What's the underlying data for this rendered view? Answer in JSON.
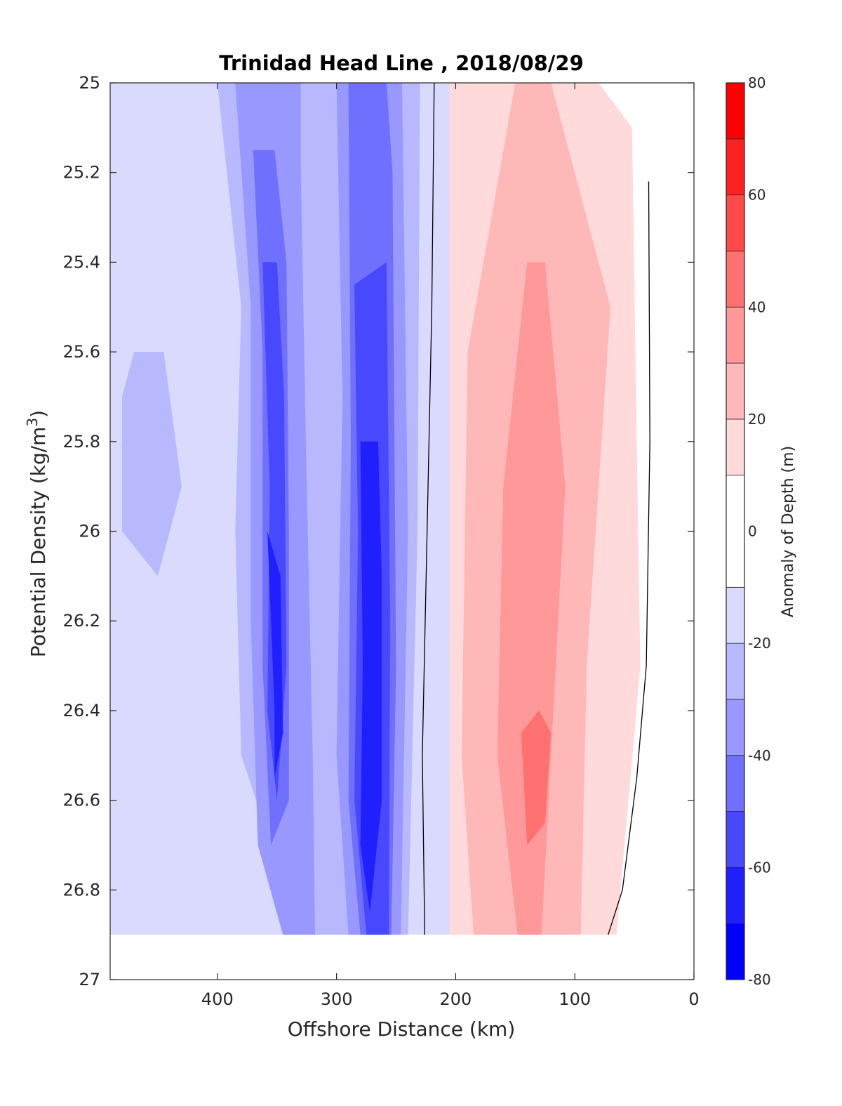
{
  "chart_data": {
    "type": "heatmap",
    "subtype": "filled-contour",
    "title": "Trinidad Head Line , 2018/08/29",
    "xlabel": "Offshore Distance (km)",
    "ylabel_main": "Potential Density (kg/m",
    "ylabel_sup": "3",
    "ylabel_end": ")",
    "xlim": [
      490,
      0
    ],
    "x_direction": "reversed",
    "ylim": [
      25,
      27
    ],
    "y_direction": "reversed (down)",
    "x_ticks": [
      400,
      300,
      200,
      100,
      0
    ],
    "y_ticks": [
      "25",
      "25.2",
      "25.4",
      "25.6",
      "25.8",
      "26",
      "26.2",
      "26.4",
      "26.6",
      "26.8",
      "27"
    ],
    "data_extent": {
      "density_max": 26.9
    },
    "colorbar": {
      "label": "Anomaly of Depth (m)",
      "range": [
        -80,
        80
      ],
      "ticks": [
        "80",
        "60",
        "40",
        "20",
        "0",
        "-20",
        "-40",
        "-60",
        "-80"
      ],
      "levels": [
        -80,
        -70,
        -60,
        -50,
        -40,
        -30,
        -20,
        -10,
        10,
        20,
        30,
        40,
        50,
        60,
        70,
        80
      ],
      "colors": [
        "#0000ff",
        "#2020ff",
        "#4848ff",
        "#7070ff",
        "#9898ff",
        "#b8b8ff",
        "#dadaff",
        "#ffffff",
        "#ffdada",
        "#ffb8b8",
        "#ff9898",
        "#ff7070",
        "#ff4848",
        "#ff2020",
        "#ff0000"
      ]
    },
    "zero_contours": [
      {
        "name": "zero-contour-main",
        "points": [
          [
            218,
            25.0
          ],
          [
            220,
            25.5
          ],
          [
            224,
            26.0
          ],
          [
            228,
            26.5
          ],
          [
            226,
            26.9
          ]
        ]
      },
      {
        "name": "zero-contour-nearshore",
        "points": [
          [
            38,
            25.22
          ],
          [
            37,
            25.8
          ],
          [
            40,
            26.3
          ],
          [
            48,
            26.55
          ],
          [
            60,
            26.8
          ],
          [
            72,
            26.9
          ]
        ]
      }
    ],
    "regions": [
      {
        "name": "region-neg10-offshore",
        "level": -20,
        "x": [
          490,
          150
        ],
        "y": [
          25.0,
          26.9
        ],
        "points": [
          [
            490,
            25.0
          ],
          [
            182,
            25.0
          ],
          [
            190,
            25.1
          ],
          [
            190,
            26.9
          ],
          [
            490,
            26.9
          ]
        ]
      },
      {
        "name": "region-neg20-offshore",
        "level": -30,
        "points": [
          [
            400,
            25.0
          ],
          [
            380,
            25.5
          ],
          [
            385,
            26.0
          ],
          [
            380,
            26.5
          ],
          [
            330,
            26.9
          ],
          [
            240,
            26.9
          ],
          [
            232,
            26.0
          ],
          [
            230,
            25.0
          ]
        ]
      },
      {
        "name": "region-neg20-west",
        "level": -30,
        "points": [
          [
            470,
            25.6
          ],
          [
            445,
            25.6
          ],
          [
            430,
            25.9
          ],
          [
            450,
            26.1
          ],
          [
            480,
            26.0
          ],
          [
            480,
            25.7
          ]
        ]
      },
      {
        "name": "region-neg30-a",
        "level": -40,
        "points": [
          [
            385,
            25.0
          ],
          [
            372,
            25.5
          ],
          [
            372,
            26.2
          ],
          [
            366,
            26.7
          ],
          [
            345,
            26.9
          ],
          [
            318,
            26.9
          ],
          [
            320,
            26.5
          ],
          [
            325,
            25.9
          ],
          [
            330,
            25.2
          ],
          [
            330,
            25.0
          ]
        ]
      },
      {
        "name": "region-neg30-b",
        "level": -40,
        "points": [
          [
            300,
            25.0
          ],
          [
            295,
            25.7
          ],
          [
            300,
            26.5
          ],
          [
            290,
            26.9
          ],
          [
            246,
            26.9
          ],
          [
            240,
            26.0
          ],
          [
            245,
            25.0
          ]
        ]
      },
      {
        "name": "region-neg40-a",
        "level": -50,
        "points": [
          [
            370,
            25.15
          ],
          [
            362,
            25.6
          ],
          [
            362,
            26.3
          ],
          [
            355,
            26.7
          ],
          [
            340,
            26.6
          ],
          [
            340,
            26.0
          ],
          [
            342,
            25.4
          ],
          [
            352,
            25.15
          ]
        ]
      },
      {
        "name": "region-neg40-b",
        "level": -50,
        "points": [
          [
            290,
            25.0
          ],
          [
            288,
            25.8
          ],
          [
            290,
            26.6
          ],
          [
            280,
            26.9
          ],
          [
            254,
            26.9
          ],
          [
            250,
            26.3
          ],
          [
            253,
            25.2
          ],
          [
            258,
            25.0
          ]
        ]
      },
      {
        "name": "region-neg50-a",
        "level": -60,
        "points": [
          [
            362,
            25.4
          ],
          [
            356,
            25.9
          ],
          [
            358,
            26.4
          ],
          [
            350,
            26.6
          ],
          [
            342,
            26.3
          ],
          [
            344,
            25.7
          ],
          [
            350,
            25.4
          ]
        ]
      },
      {
        "name": "region-neg50-b",
        "level": -60,
        "points": [
          [
            285,
            25.45
          ],
          [
            282,
            26.0
          ],
          [
            285,
            26.6
          ],
          [
            275,
            26.9
          ],
          [
            256,
            26.9
          ],
          [
            255,
            26.2
          ],
          [
            258,
            25.4
          ]
        ]
      },
      {
        "name": "region-neg60-a",
        "level": -70,
        "points": [
          [
            358,
            26.0
          ],
          [
            352,
            26.4
          ],
          [
            352,
            26.55
          ],
          [
            345,
            26.45
          ],
          [
            347,
            26.1
          ]
        ]
      },
      {
        "name": "region-neg60-b",
        "level": -70,
        "points": [
          [
            280,
            25.8
          ],
          [
            278,
            26.3
          ],
          [
            280,
            26.7
          ],
          [
            272,
            26.85
          ],
          [
            262,
            26.6
          ],
          [
            262,
            26.1
          ],
          [
            265,
            25.8
          ]
        ]
      },
      {
        "name": "region-pos10",
        "level": 20,
        "points": [
          [
            205,
            25.0
          ],
          [
            205,
            26.9
          ],
          [
            65,
            26.9
          ],
          [
            55,
            26.6
          ],
          [
            45,
            26.3
          ],
          [
            48,
            25.8
          ],
          [
            52,
            25.1
          ],
          [
            80,
            25.0
          ]
        ]
      },
      {
        "name": "region-pos20",
        "level": 30,
        "points": [
          [
            150,
            25.0
          ],
          [
            190,
            25.6
          ],
          [
            195,
            26.5
          ],
          [
            185,
            26.9
          ],
          [
            95,
            26.9
          ],
          [
            90,
            26.3
          ],
          [
            70,
            25.5
          ],
          [
            120,
            25.0
          ]
        ]
      },
      {
        "name": "region-pos30",
        "level": 40,
        "points": [
          [
            140,
            25.4
          ],
          [
            160,
            25.9
          ],
          [
            165,
            26.5
          ],
          [
            148,
            26.9
          ],
          [
            128,
            26.9
          ],
          [
            118,
            26.4
          ],
          [
            108,
            25.9
          ],
          [
            125,
            25.4
          ]
        ]
      },
      {
        "name": "region-pos40",
        "level": 50,
        "points": [
          [
            145,
            26.45
          ],
          [
            140,
            26.7
          ],
          [
            125,
            26.65
          ],
          [
            120,
            26.45
          ],
          [
            130,
            26.4
          ]
        ]
      }
    ]
  }
}
